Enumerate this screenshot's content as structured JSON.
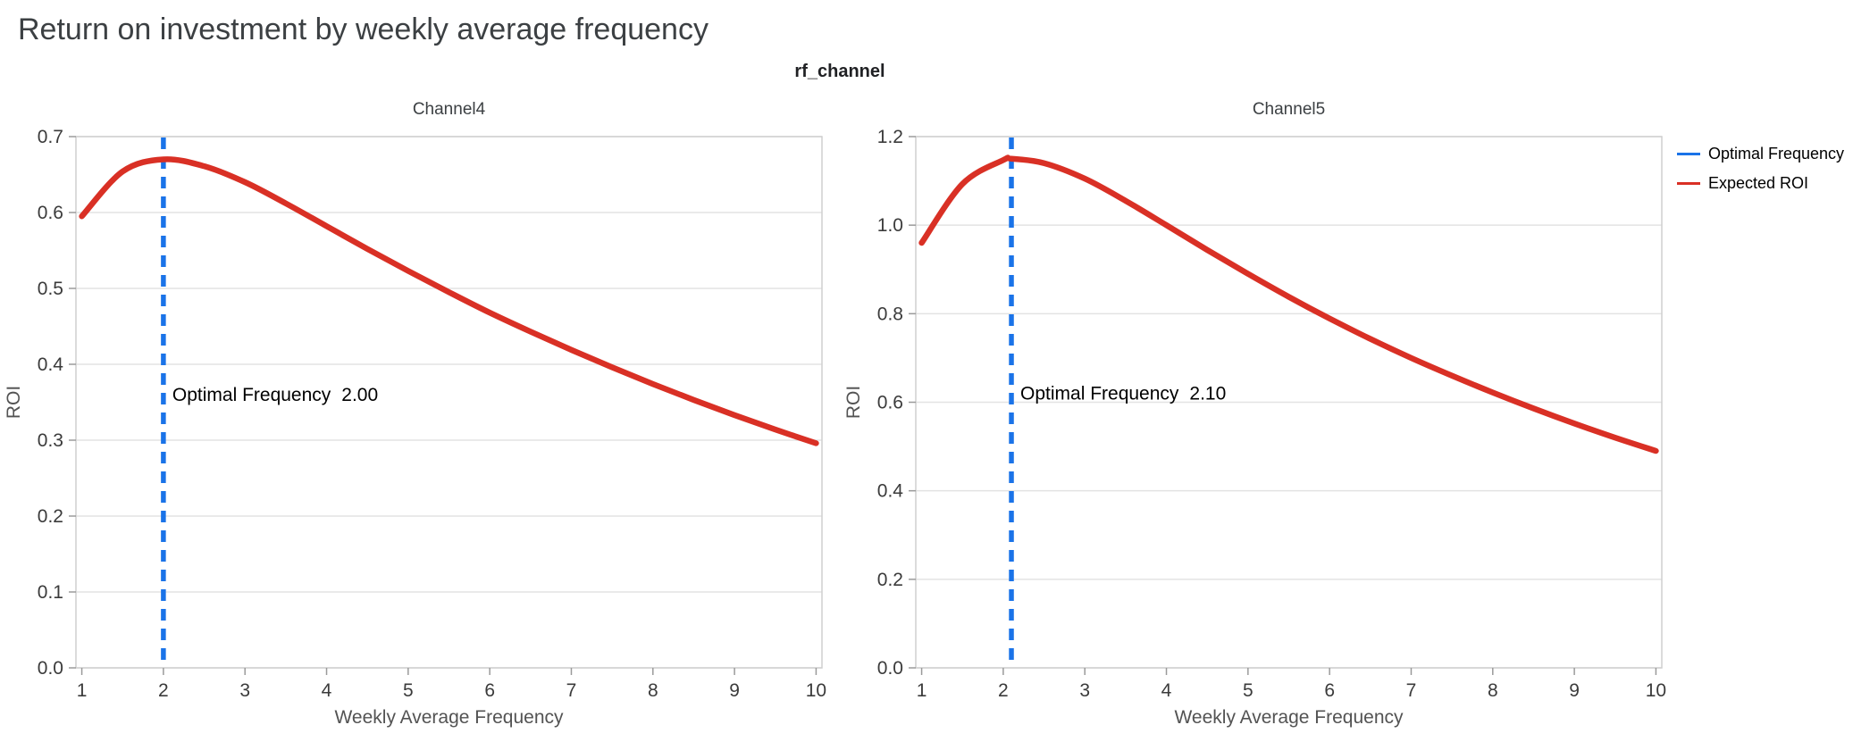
{
  "page": {
    "title": "Return on investment by weekly average frequency",
    "facet_title": "rf_channel"
  },
  "legend": {
    "position": "top-right",
    "items": [
      {
        "label": "Optimal Frequency",
        "color": "#1a73e8"
      },
      {
        "label": "Expected ROI",
        "color": "#d93025"
      }
    ]
  },
  "chart_data": [
    {
      "type": "line",
      "title": "Channel4",
      "xlabel": "Weekly Average Frequency",
      "ylabel": "ROI",
      "xlim": [
        1,
        10
      ],
      "ylim": [
        0.0,
        0.7
      ],
      "xticks": [
        1,
        2,
        3,
        4,
        5,
        6,
        7,
        8,
        9,
        10
      ],
      "yticks": [
        "0.0",
        "0.1",
        "0.2",
        "0.3",
        "0.4",
        "0.5",
        "0.6",
        "0.7"
      ],
      "grid": "horizontal",
      "optimal": {
        "x": 2.0,
        "label": "Optimal Frequency",
        "value": "2.00",
        "annotation_y": 0.36,
        "color": "#1a73e8",
        "style": "dashed"
      },
      "series": [
        {
          "name": "Expected ROI",
          "color": "#d93025",
          "x": [
            1,
            1.5,
            2,
            2.5,
            3,
            3.5,
            4,
            4.5,
            5,
            5.5,
            6,
            6.5,
            7,
            7.5,
            8,
            8.5,
            9,
            9.5,
            10
          ],
          "y": [
            0.595,
            0.654,
            0.67,
            0.661,
            0.64,
            0.612,
            0.582,
            0.552,
            0.523,
            0.495,
            0.468,
            0.443,
            0.419,
            0.396,
            0.374,
            0.353,
            0.333,
            0.314,
            0.296
          ]
        }
      ]
    },
    {
      "type": "line",
      "title": "Channel5",
      "xlabel": "Weekly Average Frequency",
      "ylabel": "ROI",
      "xlim": [
        1,
        10
      ],
      "ylim": [
        0.0,
        1.2
      ],
      "xticks": [
        1,
        2,
        3,
        4,
        5,
        6,
        7,
        8,
        9,
        10
      ],
      "yticks": [
        "0.0",
        "0.2",
        "0.4",
        "0.6",
        "0.8",
        "1.0",
        "1.2"
      ],
      "grid": "horizontal",
      "optimal": {
        "x": 2.1,
        "label": "Optimal Frequency",
        "value": "2.10",
        "annotation_y": 0.62,
        "color": "#1a73e8",
        "style": "dashed"
      },
      "series": [
        {
          "name": "Expected ROI",
          "color": "#d93025",
          "x": [
            1,
            1.5,
            2,
            2.1,
            2.5,
            3,
            3.5,
            4,
            4.5,
            5,
            5.5,
            6,
            6.5,
            7,
            7.5,
            8,
            8.5,
            9,
            9.5,
            10
          ],
          "y": [
            0.96,
            1.093,
            1.147,
            1.15,
            1.14,
            1.105,
            1.055,
            1.0,
            0.944,
            0.89,
            0.838,
            0.789,
            0.743,
            0.7,
            0.66,
            0.622,
            0.586,
            0.552,
            0.52,
            0.49
          ]
        }
      ]
    }
  ]
}
